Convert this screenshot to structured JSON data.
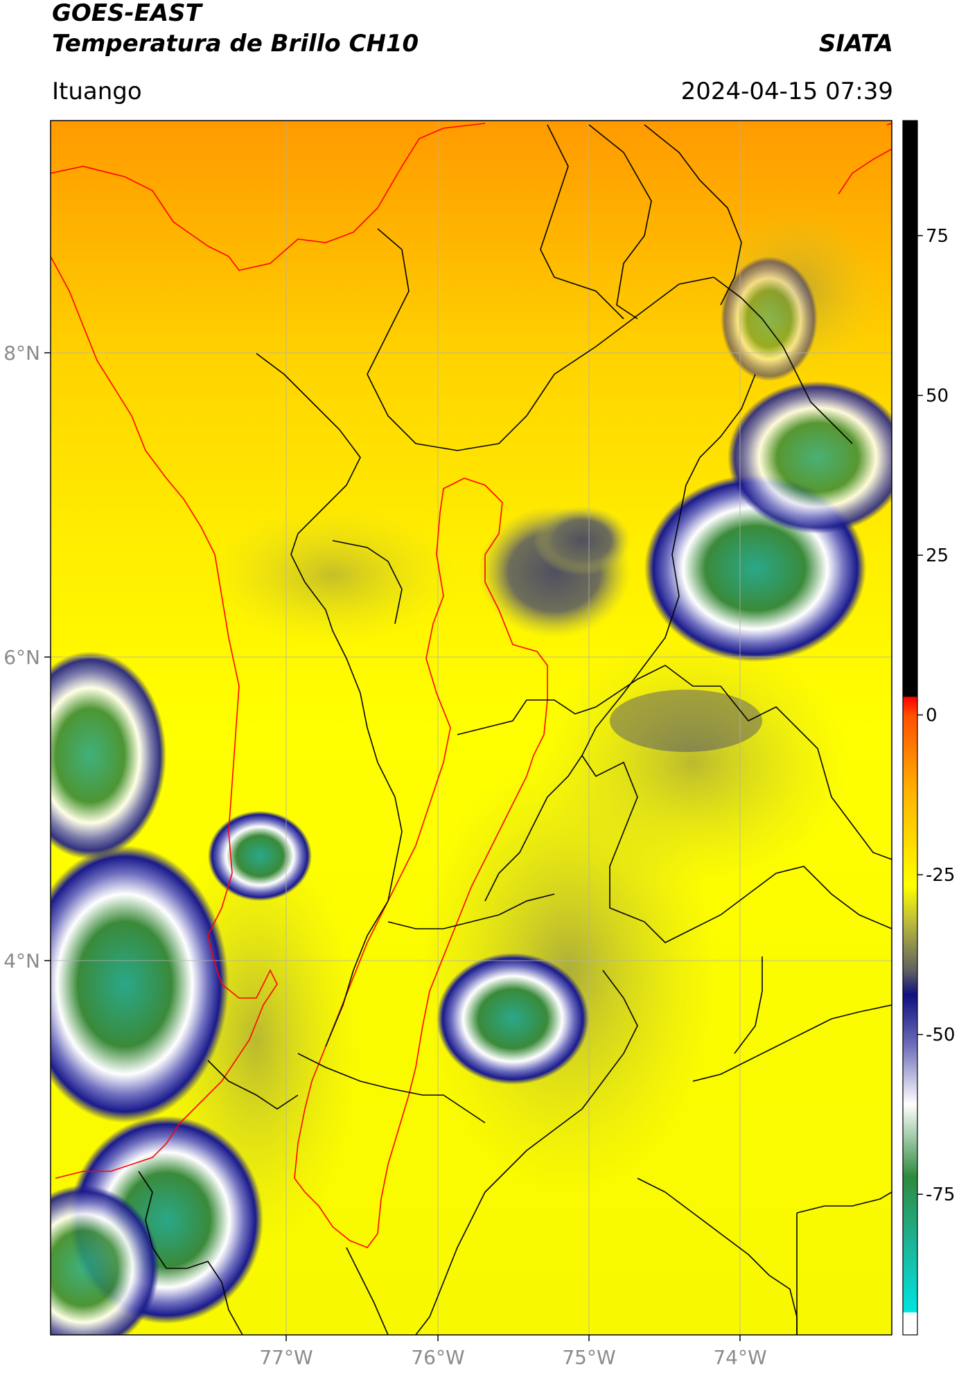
{
  "header": {
    "title_line1": "GOES-EAST",
    "title_line2": "Temperatura de Brillo CH10",
    "organization": "SIATA",
    "location": "Ituango",
    "datetime": "2024-04-15 07:39"
  },
  "map": {
    "lat_ticks": [
      "8°N",
      "6°N",
      "4°N"
    ],
    "lon_ticks": [
      "77°W",
      "76°W",
      "75°W",
      "74°W"
    ],
    "colors": {
      "warm_orange": "#ff9900",
      "yellow": "#ffff00",
      "olive": "#a8a84a",
      "gray_cloud": "#606060",
      "navy": "#1a1a8c",
      "white": "#ffffff",
      "green": "#3a8a3a",
      "teal": "#2ab0a0",
      "coast_line": "#ff0000",
      "boundaries": "#000000"
    }
  },
  "colorbar": {
    "ticks": [
      "75",
      "50",
      "25",
      "0",
      "-25",
      "-50",
      "-75"
    ],
    "range": [
      -97,
      93
    ]
  }
}
